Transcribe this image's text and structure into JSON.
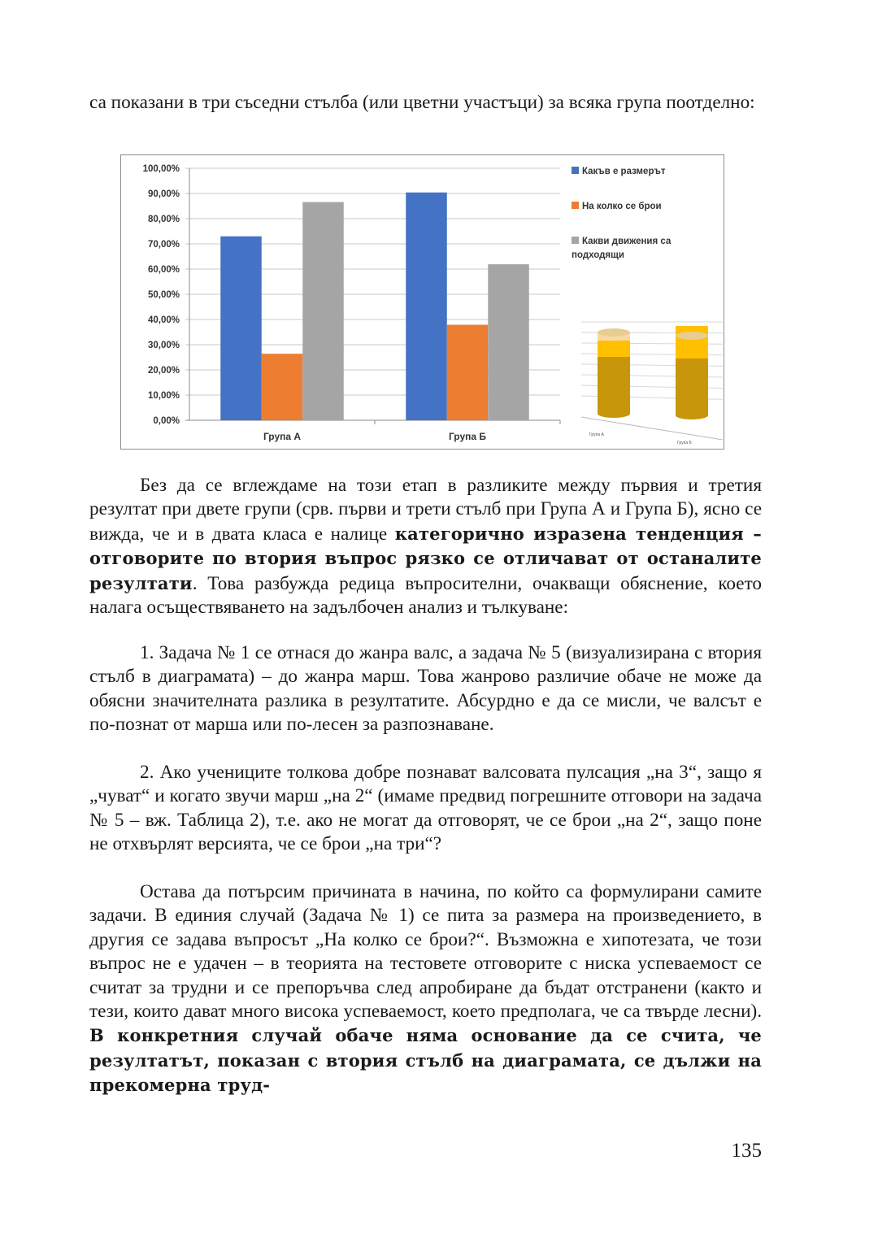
{
  "intro_text": "са показани в три съседни стълба (или цветни участъци) за всяка група поотделно:",
  "chart_data": {
    "type": "bar",
    "categories": [
      "Група А",
      "Група Б"
    ],
    "series": [
      {
        "name": "Какъв  е размерът",
        "color": "#4472c4",
        "values": [
          73.0,
          90.4
        ]
      },
      {
        "name": "На колко се брои",
        "color": "#ed7d31",
        "values": [
          26.4,
          37.9
        ]
      },
      {
        "name": "Какви  движения са подходящи",
        "color": "#a5a5a5",
        "values": [
          86.6,
          61.9
        ]
      }
    ],
    "ylim": [
      0,
      100
    ],
    "yticks": [
      "0,00%",
      "10,00%",
      "20,00%",
      "30,00%",
      "40,00%",
      "50,00%",
      "60,00%",
      "70,00%",
      "80,00%",
      "90,00%",
      "100,00%"
    ],
    "grid": true,
    "legend": "right",
    "inset": {
      "type": "3d-stacked-cylinder",
      "categories": [
        "Група А",
        "Група Б"
      ],
      "colors": [
        "#c8960a",
        "#ffc000",
        "#f8d9a0"
      ]
    }
  },
  "paragraphs": {
    "p1_a": "Без да се вглеждаме на този етап в разликите между първия и третия резултат при двете групи (срв. първи и трети стълб при Група А и Група Б), ясно се вижда, че и в двата класа е налице ",
    "p1_b": "категорично изразена тенденция – отговорите по втория въпрос рязко се отличават от останалите резултати",
    "p1_c": ". Това разбужда редица въпросителни, очакващи обяснение, което налага осъществяването на задълбочен анализ и тълкуване:",
    "item1": "1. Задача № 1 се отнася до жанра валс, а задача № 5 (визуализирана с втория стълб в диаграмата) – до жанра марш. Това жанрово различие обаче не може да обясни значителната разлика в резултатите. Абсурдно е да се мисли, че валсът е по-познат от марша или по-лесен за разпознаване.",
    "item2": "2. Ако учениците толкова добре познават валсовата пулсация „на 3“, защо я „чуват“ и когато звучи марш „на 2“ (имаме предвид погрешните отговори на задача № 5 – вж. Таблица 2), т.е. ако не могат да отговорят, че се брои „на 2“, защо поне не отхвърлят версията, че се брои „на три“?",
    "p2_a": "Остава да потърсим причината в начина, по който са формулирани самите задачи. В единия случай (Задача № 1) се пита за размера на произведението, в другия се задава въпросът „На колко се брои?“. Възможна е хипотезата, че този въпрос не е удачен – в теорията на тестовете отговорите с ниска успеваемост се считат за трудни и се препоръчва след апробиране да бъдат отстранени (както и тези, които дават много висока успеваемост, което предполага, че са твърде лесни). ",
    "p2_b": "В конкретния случай обаче няма основание да се счита, че резултатът, показан с втория стълб на диаграмата, се дължи на прекомерна труд-"
  },
  "page_number": "135"
}
